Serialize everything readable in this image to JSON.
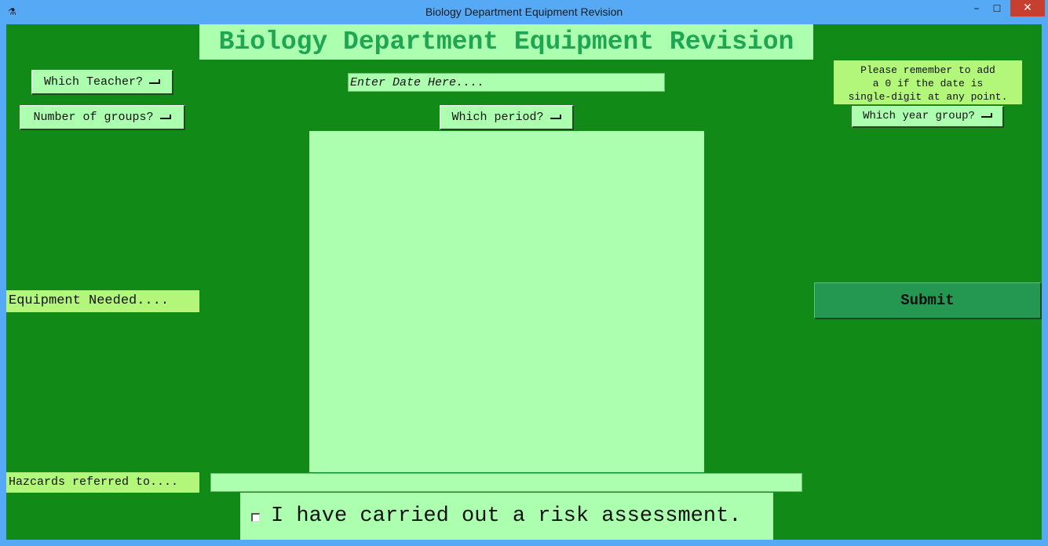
{
  "window": {
    "title": "Biology Department Equipment Revision",
    "minimize_glyph": "–",
    "maximize_glyph": "☐",
    "close_glyph": "✕",
    "icon": "microscope-icon"
  },
  "app": {
    "title": "Biology Department Equipment Revision"
  },
  "menus": {
    "teacher": "Which Teacher?",
    "groups": "Number of groups?",
    "period": "Which period?",
    "year_group": "Which year group?"
  },
  "date": {
    "placeholder": "Enter Date Here....",
    "value": ""
  },
  "reminder": {
    "lines": [
      "Please remember to add",
      "a 0 if the date is",
      "single-digit at any point."
    ]
  },
  "equipment": {
    "label": "Equipment Needed....",
    "value": ""
  },
  "submit": {
    "label": "Submit"
  },
  "hazcards": {
    "label": "Hazcards referred to....",
    "value": ""
  },
  "risk": {
    "label": "I have carried out a risk assessment.",
    "checked": false
  },
  "colors": {
    "window_frame": "#56a9f5",
    "client_bg": "#118a18",
    "field_bg": "#abffaf",
    "label_bg": "#b3f77a",
    "title_text": "#1fa653",
    "submit_bg": "#249850",
    "close_bg": "#c7402f"
  }
}
